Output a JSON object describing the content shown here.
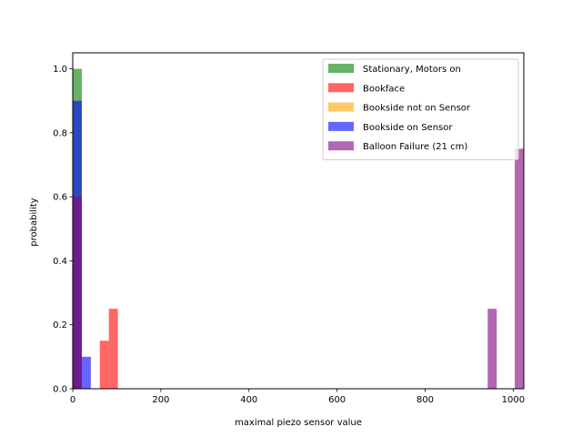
{
  "chart_data": {
    "type": "bar",
    "xlabel": "maximal piezo sensor value",
    "ylabel": "probability",
    "xlim": [
      0,
      1024
    ],
    "ylim": [
      0,
      1.05
    ],
    "xticks": [
      0,
      200,
      400,
      600,
      800,
      1000
    ],
    "yticks": [
      0.0,
      0.2,
      0.4,
      0.6,
      0.8,
      1.0
    ],
    "xtick_labels": [
      "0",
      "200",
      "400",
      "600",
      "800",
      "1000"
    ],
    "ytick_labels": [
      "0.0",
      "0.2",
      "0.4",
      "0.6",
      "0.8",
      "1.0"
    ],
    "legend_position": "top-right",
    "grid": false,
    "bin_width": 20.5,
    "series": [
      {
        "name": "Stationary, Motors on",
        "color": "#008000",
        "opacity": 0.6,
        "bins": [
          {
            "x0": 0,
            "value": 1.0
          }
        ]
      },
      {
        "name": "Bookface",
        "color": "#ff0000",
        "opacity": 0.6,
        "bins": [
          {
            "x0": 61.5,
            "value": 0.15
          },
          {
            "x0": 82,
            "value": 0.25
          }
        ]
      },
      {
        "name": "Bookside not on Sensor",
        "color": "#ffa500",
        "opacity": 0.6,
        "bins": [
          {
            "x0": 0,
            "value": 0.6
          }
        ]
      },
      {
        "name": "Bookside on Sensor",
        "color": "#0000ff",
        "opacity": 0.6,
        "bins": [
          {
            "x0": 0,
            "value": 0.9
          },
          {
            "x0": 20.5,
            "value": 0.1
          }
        ]
      },
      {
        "name": "Balloon Failure (21 cm)",
        "color": "#800080",
        "opacity": 0.6,
        "bins": [
          {
            "x0": 0,
            "value": 0.6
          },
          {
            "x0": 942,
            "value": 0.25
          },
          {
            "x0": 1003.5,
            "value": 0.75
          }
        ]
      }
    ]
  }
}
